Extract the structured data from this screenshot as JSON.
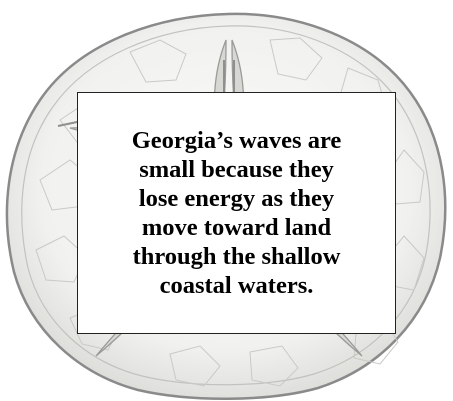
{
  "caption": {
    "lines": [
      "Georgia’s waves are",
      "small because they",
      "lose energy as they",
      "move toward land",
      "through the shallow",
      "coastal waters."
    ]
  },
  "illustration": {
    "icon": "sand-dollar-icon",
    "colors": {
      "outline": "#8a8a8a",
      "fill": "#f4f4f2",
      "shade": "#b9b9b6",
      "petal": "#9a9a96"
    }
  }
}
